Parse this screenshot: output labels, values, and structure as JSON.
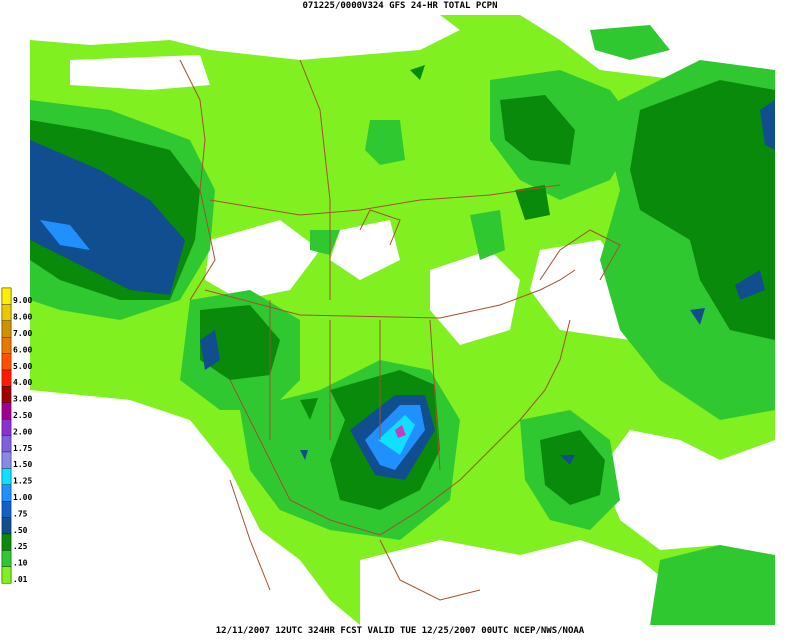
{
  "header": {
    "title": "071225/0000V324 GFS 24-HR TOTAL PCPN"
  },
  "footer": {
    "text": "12/11/2007 12UTC 324HR FCST VALID TUE 12/25/2007 00UTC  NCEP/NWS/NOAA"
  },
  "legend": [
    {
      "label": "9.00",
      "color": "#ffee00"
    },
    {
      "label": "8.00",
      "color": "#e8c800"
    },
    {
      "label": "7.00",
      "color": "#d09000"
    },
    {
      "label": "6.00",
      "color": "#e87800"
    },
    {
      "label": "5.00",
      "color": "#ff5000"
    },
    {
      "label": "4.00",
      "color": "#ff1a00"
    },
    {
      "label": "3.00",
      "color": "#a00000"
    },
    {
      "label": "2.50",
      "color": "#a00090"
    },
    {
      "label": "2.00",
      "color": "#8a30d0"
    },
    {
      "label": "1.75",
      "color": "#8060e0"
    },
    {
      "label": "1.50",
      "color": "#8888e8"
    },
    {
      "label": "1.25",
      "color": "#10e0ff"
    },
    {
      "label": "1.00",
      "color": "#2090ff"
    },
    {
      "label": ".75",
      "color": "#1060c8"
    },
    {
      "label": ".50",
      "color": "#104e90"
    },
    {
      "label": ".25",
      "color": "#0a8a0a"
    },
    {
      "label": ".10",
      "color": "#30c830"
    },
    {
      "label": ".01",
      "color": "#80f020"
    }
  ]
}
